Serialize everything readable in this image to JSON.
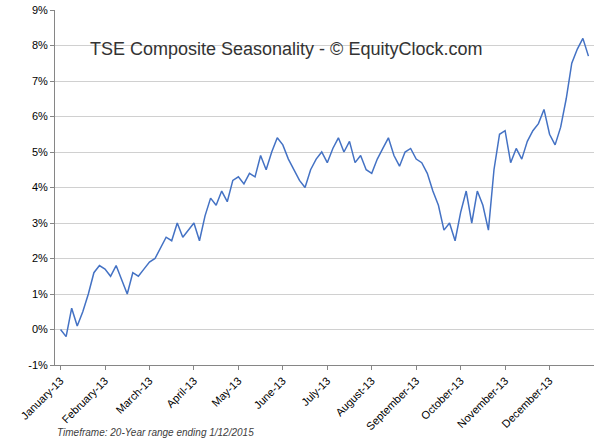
{
  "chart_data": {
    "type": "line",
    "title": "TSE Composite Seasonality - © EquityClock.com",
    "annotations": [
      "Timeframe: 20-Year range ending 1/12/2015"
    ],
    "categories": [
      "January-13",
      null,
      null,
      null,
      null,
      null,
      null,
      null,
      "February-13",
      null,
      null,
      null,
      null,
      null,
      null,
      null,
      "March-13",
      null,
      null,
      null,
      null,
      null,
      null,
      null,
      "April-13",
      null,
      null,
      null,
      null,
      null,
      null,
      null,
      "May-13",
      null,
      null,
      null,
      null,
      null,
      null,
      null,
      "June-13",
      null,
      null,
      null,
      null,
      null,
      null,
      null,
      "July-13",
      null,
      null,
      null,
      null,
      null,
      null,
      null,
      "August-13",
      null,
      null,
      null,
      null,
      null,
      null,
      null,
      "September-13",
      null,
      null,
      null,
      null,
      null,
      null,
      null,
      "October-13",
      null,
      null,
      null,
      null,
      null,
      null,
      null,
      "November-13",
      null,
      null,
      null,
      null,
      null,
      null,
      null,
      "December-13",
      null,
      null,
      null,
      null,
      null,
      null,
      null
    ],
    "values": [
      0,
      -0.2,
      0.6,
      0.1,
      0.5,
      1.0,
      1.6,
      1.8,
      1.7,
      1.5,
      1.8,
      1.4,
      1.0,
      1.6,
      1.5,
      1.7,
      1.9,
      2.0,
      2.3,
      2.6,
      2.5,
      3.0,
      2.6,
      2.8,
      3.0,
      2.5,
      3.2,
      3.7,
      3.5,
      3.9,
      3.6,
      4.2,
      4.3,
      4.1,
      4.4,
      4.3,
      4.9,
      4.5,
      5.0,
      5.4,
      5.2,
      4.8,
      4.5,
      4.2,
      4.0,
      4.5,
      4.8,
      5.0,
      4.7,
      5.1,
      5.4,
      5.0,
      5.3,
      4.7,
      4.9,
      4.5,
      4.4,
      4.8,
      5.1,
      5.4,
      4.9,
      4.6,
      5.0,
      5.1,
      4.8,
      4.7,
      4.4,
      3.9,
      3.5,
      2.8,
      3.0,
      2.5,
      3.3,
      3.9,
      3.0,
      3.9,
      3.5,
      2.8,
      4.5,
      5.5,
      5.6,
      4.7,
      5.1,
      4.8,
      5.3,
      5.6,
      5.8,
      6.2,
      5.5,
      5.2,
      5.7,
      6.5,
      7.5,
      7.9,
      8.2,
      7.7
    ],
    "color": "#4472c4",
    "ylim": [
      -1,
      9
    ],
    "yticks": [
      {
        "value": -1,
        "label": "-1%"
      },
      {
        "value": 0,
        "label": "0%"
      },
      {
        "value": 1,
        "label": "1%"
      },
      {
        "value": 2,
        "label": "2%"
      },
      {
        "value": 3,
        "label": "3%"
      },
      {
        "value": 4,
        "label": "4%"
      },
      {
        "value": 5,
        "label": "5%"
      },
      {
        "value": 6,
        "label": "6%"
      },
      {
        "value": 7,
        "label": "7%"
      },
      {
        "value": 8,
        "label": "8%"
      },
      {
        "value": 9,
        "label": "9%"
      }
    ],
    "grid": true
  }
}
